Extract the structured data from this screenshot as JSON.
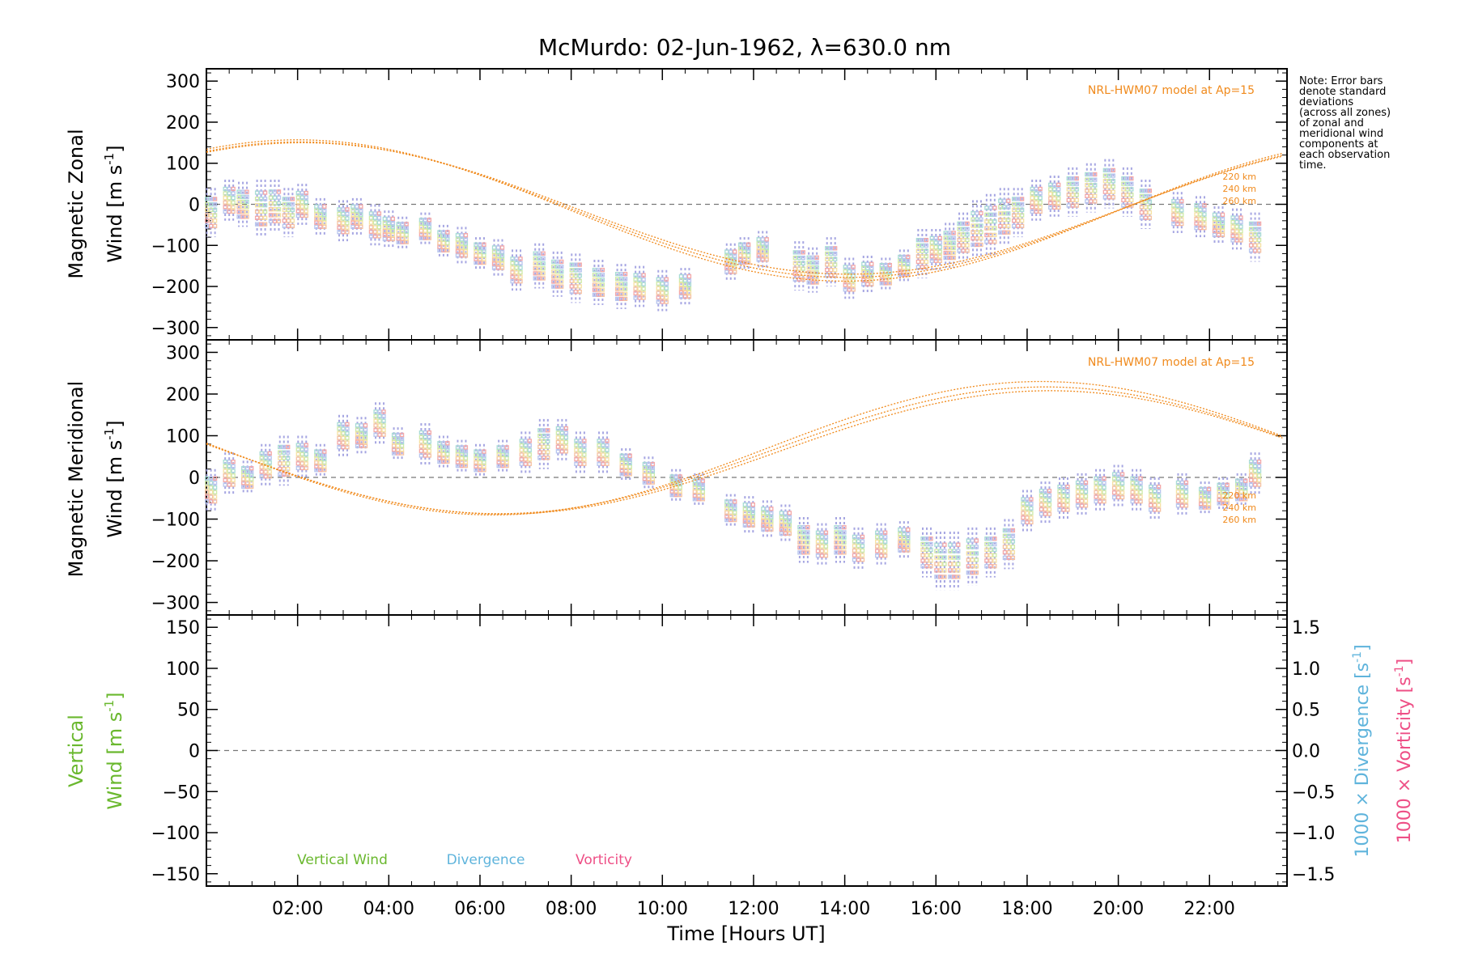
{
  "title": "McMurdo: 02-Jun-1962, λ=630.0 nm",
  "note_lines": [
    "Note: Error bars",
    "denote standard",
    "deviations",
    "(across all zones)",
    "of zonal and",
    "meridional wind",
    "components at",
    "each observation",
    "time."
  ],
  "xlabel": "Time [Hours UT]",
  "colors": {
    "model": "#f08a1c",
    "vertical": "#6ab82e",
    "divergence": "#5fb4dc",
    "vorticity": "#ee4f86",
    "errbar": "#a6a6e2"
  },
  "chart_data": [
    {
      "type": "scatter",
      "panel": "zonal",
      "ylabel": [
        "Magnetic Zonal",
        "Wind [m s",
        "-1",
        "]"
      ],
      "ylim": [
        -330,
        330
      ],
      "xlim": [
        0,
        23.7
      ],
      "yticks": [
        "300",
        "200",
        "100",
        "0",
        "−100",
        "−200",
        "−300"
      ],
      "ytick_values": [
        300,
        200,
        100,
        0,
        -100,
        -200,
        -300
      ],
      "model_label": "NRL-HWM07 model at Ap=15",
      "model_alt_labels": [
        "220 km",
        "240 km",
        "260 km"
      ],
      "model_series": [
        {
          "amp": 172,
          "off": -15,
          "phase": 2.0
        },
        {
          "amp": 165,
          "off": -13,
          "phase": 2.05
        },
        {
          "amp": 160,
          "off": -10,
          "phase": 2.1
        }
      ],
      "observations": [
        [
          0.1,
          -20,
          60
        ],
        [
          0.5,
          10,
          50
        ],
        [
          0.8,
          0,
          55
        ],
        [
          1.2,
          -10,
          70
        ],
        [
          1.5,
          -5,
          65
        ],
        [
          1.8,
          -20,
          60
        ],
        [
          2.1,
          0,
          50
        ],
        [
          2.5,
          -30,
          45
        ],
        [
          3.0,
          -40,
          50
        ],
        [
          3.3,
          -30,
          45
        ],
        [
          3.7,
          -50,
          50
        ],
        [
          4.0,
          -60,
          45
        ],
        [
          4.3,
          -70,
          40
        ],
        [
          4.8,
          -60,
          40
        ],
        [
          5.2,
          -90,
          40
        ],
        [
          5.6,
          -100,
          45
        ],
        [
          6.0,
          -120,
          40
        ],
        [
          6.4,
          -130,
          45
        ],
        [
          6.8,
          -160,
          50
        ],
        [
          7.3,
          -150,
          55
        ],
        [
          7.7,
          -170,
          55
        ],
        [
          8.1,
          -180,
          60
        ],
        [
          8.6,
          -190,
          55
        ],
        [
          9.1,
          -200,
          55
        ],
        [
          9.5,
          -200,
          50
        ],
        [
          10.0,
          -210,
          50
        ],
        [
          10.5,
          -200,
          45
        ],
        [
          11.5,
          -140,
          45
        ],
        [
          11.8,
          -120,
          40
        ],
        [
          12.2,
          -110,
          45
        ],
        [
          13.0,
          -150,
          60
        ],
        [
          13.3,
          -160,
          55
        ],
        [
          13.7,
          -140,
          60
        ],
        [
          14.1,
          -180,
          50
        ],
        [
          14.5,
          -170,
          45
        ],
        [
          14.9,
          -170,
          40
        ],
        [
          15.3,
          -150,
          40
        ],
        [
          15.7,
          -120,
          60
        ],
        [
          16.0,
          -110,
          50
        ],
        [
          16.3,
          -100,
          55
        ],
        [
          16.6,
          -80,
          60
        ],
        [
          16.9,
          -60,
          70
        ],
        [
          17.2,
          -50,
          75
        ],
        [
          17.5,
          -30,
          70
        ],
        [
          17.8,
          -20,
          60
        ],
        [
          18.2,
          10,
          50
        ],
        [
          18.6,
          20,
          50
        ],
        [
          19.0,
          30,
          60
        ],
        [
          19.4,
          40,
          60
        ],
        [
          19.8,
          50,
          60
        ],
        [
          20.2,
          30,
          60
        ],
        [
          20.6,
          0,
          60
        ],
        [
          21.3,
          -20,
          50
        ],
        [
          21.8,
          -30,
          50
        ],
        [
          22.2,
          -50,
          45
        ],
        [
          22.6,
          -60,
          50
        ],
        [
          23.0,
          -80,
          60
        ]
      ]
    },
    {
      "type": "scatter",
      "panel": "meridional",
      "ylabel": [
        "Magnetic Meridional",
        "Wind [m s",
        "-1",
        "]"
      ],
      "ylim": [
        -330,
        330
      ],
      "xlim": [
        0,
        23.7
      ],
      "yticks": [
        "300",
        "200",
        "100",
        "0",
        "−100",
        "−200",
        "−300"
      ],
      "ytick_values": [
        300,
        200,
        100,
        0,
        -100,
        -200,
        -300
      ],
      "model_label": "NRL-HWM07 model at Ap=15",
      "model_alt_labels": [
        "220 km",
        "240 km",
        "260 km"
      ],
      "model_series": [
        {
          "amp": 160,
          "off": 70,
          "phase": -5.7
        },
        {
          "amp": 152,
          "off": 65,
          "phase": -5.6
        },
        {
          "amp": 148,
          "off": 60,
          "phase": -5.5
        }
      ],
      "observations": [
        [
          0.1,
          -30,
          50
        ],
        [
          0.5,
          10,
          50
        ],
        [
          0.9,
          0,
          40
        ],
        [
          1.3,
          30,
          50
        ],
        [
          1.7,
          40,
          60
        ],
        [
          2.1,
          50,
          50
        ],
        [
          2.5,
          40,
          40
        ],
        [
          3.0,
          100,
          50
        ],
        [
          3.4,
          100,
          45
        ],
        [
          3.8,
          130,
          50
        ],
        [
          4.2,
          80,
          40
        ],
        [
          4.8,
          80,
          50
        ],
        [
          5.2,
          60,
          40
        ],
        [
          5.6,
          50,
          40
        ],
        [
          6.0,
          40,
          40
        ],
        [
          6.5,
          50,
          40
        ],
        [
          7.0,
          60,
          50
        ],
        [
          7.4,
          80,
          60
        ],
        [
          7.8,
          90,
          50
        ],
        [
          8.2,
          60,
          50
        ],
        [
          8.7,
          60,
          50
        ],
        [
          9.2,
          30,
          40
        ],
        [
          9.7,
          10,
          40
        ],
        [
          10.3,
          -20,
          40
        ],
        [
          10.8,
          -30,
          40
        ],
        [
          11.5,
          -80,
          40
        ],
        [
          11.9,
          -90,
          45
        ],
        [
          12.3,
          -100,
          45
        ],
        [
          12.7,
          -110,
          45
        ],
        [
          13.1,
          -150,
          55
        ],
        [
          13.5,
          -160,
          50
        ],
        [
          13.9,
          -150,
          55
        ],
        [
          14.3,
          -170,
          50
        ],
        [
          14.8,
          -160,
          50
        ],
        [
          15.3,
          -150,
          45
        ],
        [
          15.8,
          -180,
          60
        ],
        [
          16.1,
          -200,
          70
        ],
        [
          16.4,
          -200,
          70
        ],
        [
          16.8,
          -190,
          70
        ],
        [
          17.2,
          -180,
          60
        ],
        [
          17.6,
          -160,
          60
        ],
        [
          18.0,
          -80,
          50
        ],
        [
          18.4,
          -60,
          50
        ],
        [
          18.8,
          -50,
          50
        ],
        [
          19.2,
          -40,
          50
        ],
        [
          19.6,
          -30,
          50
        ],
        [
          20.0,
          -20,
          50
        ],
        [
          20.4,
          -30,
          50
        ],
        [
          20.8,
          -50,
          50
        ],
        [
          21.4,
          -40,
          50
        ],
        [
          21.9,
          -50,
          40
        ],
        [
          22.3,
          -40,
          40
        ],
        [
          22.7,
          -30,
          40
        ],
        [
          23.0,
          10,
          50
        ]
      ]
    },
    {
      "type": "line",
      "panel": "vertical",
      "ylabel": [
        "Vertical",
        "Wind [m s",
        "-1",
        "]"
      ],
      "ylim": [
        -165,
        165
      ],
      "xlim": [
        0,
        23.7
      ],
      "yticks": [
        "150",
        "100",
        "50",
        "0",
        "−50",
        "−100",
        "−150"
      ],
      "ytick_values": [
        150,
        100,
        50,
        0,
        -50,
        -100,
        -150
      ],
      "right_ylim": [
        -1.65,
        1.65
      ],
      "right_yticks": [
        "1.5",
        "1.0",
        "0.5",
        "0.0",
        "−0.5",
        "−1.0",
        "−1.5"
      ],
      "right_ytick_values": [
        1.5,
        1.0,
        0.5,
        0.0,
        -0.5,
        -1.0,
        -1.5
      ],
      "right_label_div": [
        "1000 × Divergence [s",
        "-1",
        "]"
      ],
      "right_label_vort": [
        "1000 × Vorticity [s",
        "-1",
        "]"
      ],
      "legend": [
        "Vertical Wind",
        "Divergence",
        "Vorticity"
      ]
    }
  ],
  "xticks": [
    "02:00",
    "04:00",
    "06:00",
    "08:00",
    "10:00",
    "12:00",
    "14:00",
    "16:00",
    "18:00",
    "20:00",
    "22:00"
  ],
  "xtick_values": [
    2,
    4,
    6,
    8,
    10,
    12,
    14,
    16,
    18,
    20,
    22
  ]
}
